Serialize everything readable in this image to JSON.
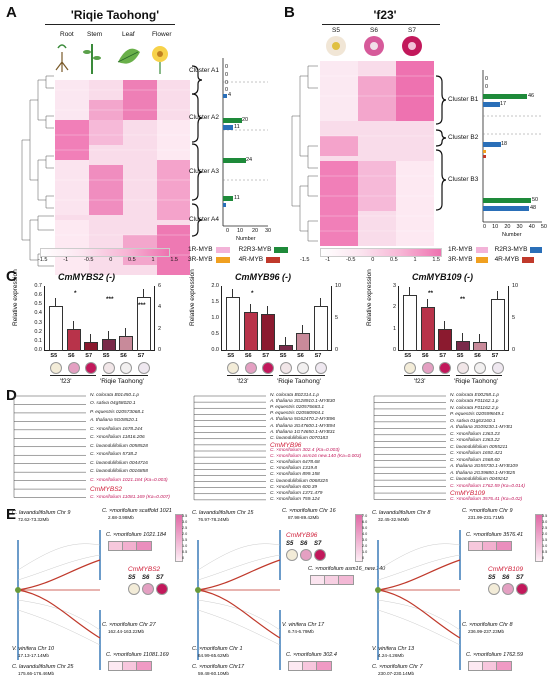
{
  "panelA": {
    "label": "A",
    "title": "'Riqie Taohong'",
    "columns": [
      "Root",
      "Stem",
      "Leaf",
      "Flower"
    ],
    "clusters": [
      "Cluster A1",
      "Cluster A2",
      "Cluster A3",
      "Cluster A4"
    ],
    "bar_values": [
      "0",
      "0",
      "0",
      "0",
      "0",
      "4",
      "0",
      "20",
      "11",
      "0",
      "0",
      "24",
      "0",
      "11",
      "0",
      "0",
      "0"
    ],
    "axis_ticks": [
      "0",
      "10",
      "20",
      "30"
    ],
    "axis_label": "Number",
    "scale_ticks": [
      "-1.5",
      "-1",
      "-0.5",
      "0",
      "0.5",
      "1",
      "1.5"
    ]
  },
  "panelB": {
    "label": "B",
    "title": "'f23'",
    "columns": [
      "S5",
      "S6",
      "S7"
    ],
    "clusters": [
      "Cluster B1",
      "Cluster B2",
      "Cluster B3"
    ],
    "bar_values": [
      "0",
      "0",
      "46",
      "17",
      "0",
      "0",
      "0",
      "0",
      "0",
      "18",
      "0",
      "0",
      "0",
      "50",
      "48"
    ],
    "axis_ticks": [
      "0",
      "10",
      "20",
      "30",
      "40",
      "50"
    ],
    "axis_label": "Number",
    "scale_ticks": [
      "-1.5",
      "-1",
      "-0.5",
      "0",
      "0.5",
      "1",
      "1.5"
    ]
  },
  "legend": {
    "items": [
      "1R-MYB",
      "R2R3-MYB",
      "3R-MYB",
      "4R-MYB"
    ],
    "colors": {
      "1R-MYB": "#f3b3d8",
      "R2R3-MYB": "#1e8a3a",
      "3R-MYB": "#f0a020",
      "4R-MYB": "#c0392b",
      "R2R3-MYB-B": "#2a6fb8"
    }
  },
  "panelC": {
    "label": "C",
    "ylabel": "Relative expression",
    "groups": [
      "'f23'",
      "'Riqie Taohong'"
    ],
    "categories": [
      "S5",
      "S6",
      "S7",
      "S5",
      "S6",
      "S7"
    ],
    "charts": [
      {
        "title": "CmMYBS2 (-)",
        "left_ticks": [
          "0.0",
          "0.1",
          "0.2",
          "0.3",
          "0.4",
          "0.5",
          "0.6",
          "0.7"
        ],
        "right_ticks": [
          "0",
          "2",
          "4",
          "6"
        ],
        "values": [
          0.48,
          0.23,
          0.09,
          0.12,
          0.15,
          0.58
        ],
        "sig": [
          "*",
          "***",
          "***"
        ]
      },
      {
        "title": "CmMYB96 (-)",
        "left_ticks": [
          "0.0",
          "0.5",
          "1.0",
          "1.5",
          "2.0"
        ],
        "right_ticks": [
          "0",
          "5",
          "10"
        ],
        "values": [
          1.65,
          1.2,
          1.12,
          0.17,
          0.52,
          1.38
        ],
        "sig": [
          "*"
        ]
      },
      {
        "title": "CmMYB109 (-)",
        "left_ticks": [
          "0",
          "1",
          "2",
          "3"
        ],
        "right_ticks": [
          "0",
          "5",
          "10"
        ],
        "values": [
          2.6,
          2.0,
          1.0,
          0.43,
          0.38,
          2.4
        ],
        "sig": [
          "**",
          "**"
        ]
      }
    ]
  },
  "panelD": {
    "label": "D",
    "trees": [
      {
        "leaves": [
          "N. colorata B01450.1.p",
          "O. sativa 04g58020.1",
          "P. equestris 020573068.1",
          "A. thaliana 5G08520.1",
          "C. ×morifolium 1678.244",
          "C. ×morifolium 11816.206",
          "C. lavandulifolium 0058528",
          "C. ×morifolium 5738.2",
          "C. lavandulifolium 0044716",
          "C. lavandulifolium 0016858",
          "C. ×morifolium 1021.184 (Ka=0.003)",
          "CmMYBS2",
          "C. ×morifolium 11081.169 (Ka=0.007)"
        ]
      },
      {
        "leaves": [
          "N. colorata B02314.1.p",
          "A. thaliana 3G28910.1-MYB30",
          "P. equestris 020576683.1",
          "P. equestris 020580904.1",
          "A. thaliana 5G62470.2-MYB96",
          "A. thaliana 3G47600.1-MYB94",
          "A. thaliana 1G74650.1-MYB31",
          "C. lavandulifolium 0070183",
          "CmMYB96",
          "C. ×morifolium 302.4 (Ka=0.003)",
          "C. ×morifolium asm16 new.140 (Ka=0.003)",
          "C. ×morifolium 6478.68",
          "C. ×morifolium 1319.8",
          "C. ×morifolium 899.158",
          "C. lavandulifolium 0068325",
          "C. ×morifolium 600.39",
          "C. ×morifolium 1371.479",
          "C. ×morifolium 759.124"
        ]
      },
      {
        "leaves": [
          "N. colorata E00258.1.p",
          "N. colorata F01162.1.p",
          "N. colorata F01162.2.p",
          "P. equestris 020599849.1",
          "O. sativa 01g63160.1",
          "A. thaliana 3G09230.1-MYB1",
          "C. ×morifolium 1363.23",
          "C. ×morifolium 1363.22",
          "C. lavandulifolium 0055211",
          "C. ×morifolium 1692.421",
          "C. ×morifolium 1568.60",
          "A. thaliana 3G55730.1-MYB109",
          "A. thaliana 2G39880.1-MYB25",
          "C. lavandulifolium 0049242",
          "C. ×morifolium 1762.59 (Ka=0.014)",
          "CmMYB109",
          "C. ×morifolium 3576.41 (Ka=0.02)"
        ]
      }
    ]
  },
  "panelE": {
    "label": "E",
    "blocks": [
      {
        "chroms": [
          {
            "name": "C. lavandulifolium Chr 9",
            "range": "72.62-73.32Mb"
          },
          {
            "name": "C. ×morifolium scaffold 1021",
            "range": "2.68-3.98Mb"
          },
          {
            "name": "V. vinifera Chr 10",
            "range": "17.13-17.14Mb"
          },
          {
            "name": "C. ×morifolium Chr 27",
            "range": "162.44-163.22Mb"
          },
          {
            "name": "C. lavandulifolium Chr 25",
            "range": "175.66-176.46Mb"
          }
        ],
        "genes": [
          "C. ×morifolium 1021.184",
          "CmMYBS2",
          "C. ×morifolium 11081.169"
        ],
        "stages": [
          "S5",
          "S6",
          "S7"
        ],
        "scale_ticks": [
          "0",
          "0.5",
          "1.0",
          "1.5",
          "2.0",
          "2.5",
          "3.0",
          "3.5"
        ]
      },
      {
        "chroms": [
          {
            "name": "C. lavandulifolium Chr 15",
            "range": "76.97-78.24Mb"
          },
          {
            "name": "C. ×morifolium Chr 16",
            "range": "87.98-89.42Mb"
          },
          {
            "name": "C. ×morifolium Chr 1",
            "range": "64.99-65.62Mb"
          },
          {
            "name": "V. vinifera Chr 17",
            "range": "6.74-6.79Mb"
          },
          {
            "name": "C. ×morifolium Chr17",
            "range": "59.48-60.10Mb"
          }
        ],
        "genes": [
          "CmMYB96",
          "C. ×morifolium asm16_new.140",
          "C. ×morifolium 302.4"
        ],
        "stages": [
          "S5",
          "S6",
          "S7"
        ],
        "scale_ticks": [
          "0",
          "1.0",
          "2.0",
          "3.0",
          "4.0",
          "5.0",
          "6.0",
          "7.0"
        ]
      },
      {
        "chroms": [
          {
            "name": "C. lavandulifolium Chr 8",
            "range": "32.45-32.94Mb"
          },
          {
            "name": "C. ×morifolium Chr 9",
            "range": "231.99-231.71Mb"
          },
          {
            "name": "V. vinifera Chr 13",
            "range": "4.24-4.26Mb"
          },
          {
            "name": "C. ×morifolium Chr 8",
            "range": "236.99-237.23Mb"
          },
          {
            "name": "C. ×morifolium Chr 7",
            "range": "230.07-230.14Mb"
          }
        ],
        "genes": [
          "C. ×morifolium 3576.41",
          "CmMYB109",
          "C. ×morifolium 1762.59"
        ],
        "stages": [
          "S5",
          "S6",
          "S7"
        ],
        "scale_ticks": [
          "0",
          "0.5",
          "1.0",
          "1.5",
          "2.0",
          "2.5",
          "3.0",
          "3.5"
        ]
      }
    ]
  }
}
